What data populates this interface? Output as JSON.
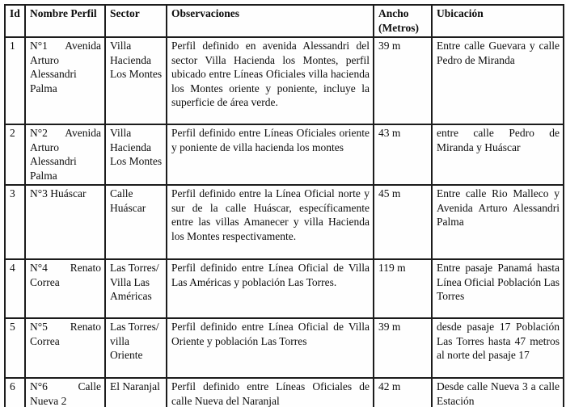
{
  "table": {
    "headers": {
      "id": "Id",
      "nombre": "Nombre Perfil",
      "sector": "Sector",
      "observaciones": "Observaciones",
      "ancho": "Ancho (Metros)",
      "ubicacion": "Ubicación"
    },
    "rows": [
      {
        "id": "1",
        "nombre": "N°1 Avenida Arturo Alessandri Palma",
        "sector": "Villa Hacienda Los Montes",
        "observaciones": "Perfil definido en avenida Alessandri del sector Villa Hacienda los Montes, perfil ubicado entre Líneas Oficiales villa hacienda los Montes oriente y poniente, incluye la superficie de área verde.",
        "ancho": "39 m",
        "ubicacion": "Entre calle Guevara y calle Pedro de Miranda"
      },
      {
        "id": "2",
        "nombre": "N°2 Avenida Arturo Alessandri Palma",
        "sector": "Villa Hacienda Los Montes",
        "observaciones": "Perfil definido entre Líneas Oficiales oriente y poniente de villa hacienda los montes",
        "ancho": "43 m",
        "ubicacion": "entre calle Pedro de Miranda y Huáscar"
      },
      {
        "id": "3",
        "nombre": "N°3 Huáscar",
        "sector": "Calle Huáscar",
        "observaciones": "Perfil definido entre la Línea Oficial norte y sur de la calle Huáscar, específicamente entre las villas Amanecer y villa Hacienda los Montes respectivamente.",
        "ancho": "45 m",
        "ubicacion": "Entre calle Rio Malleco y Avenida Arturo Alessandri Palma"
      },
      {
        "id": "4",
        "nombre": "N°4 Renato Correa",
        "sector": "Las Torres/ Villa Las Américas",
        "observaciones": "Perfil definido entre Línea Oficial de Villa Las Américas y población Las Torres.",
        "ancho": "119 m",
        "ubicacion": "Entre pasaje Panamá hasta Línea Oficial Población Las Torres"
      },
      {
        "id": "5",
        "nombre": "N°5 Renato Correa",
        "sector": "Las Torres/ villa Oriente",
        "observaciones": "Perfil definido entre Línea Oficial de Villa Oriente y población Las Torres",
        "ancho": "39 m",
        "ubicacion": "desde pasaje 17 Población Las Torres hasta 47 metros al norte del pasaje 17"
      },
      {
        "id": "6",
        "nombre": "N°6 Calle Nueva 2",
        "sector": "El Naranjal",
        "observaciones": "Perfil definido entre Líneas Oficiales de calle Nueva del Naranjal",
        "ancho": "42 m",
        "ubicacion": "Desde calle Nueva 3 a calle Estación"
      }
    ]
  }
}
